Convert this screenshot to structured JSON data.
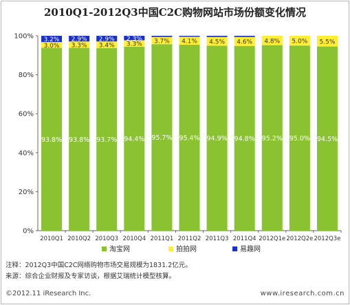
{
  "title": "2010Q1-2012Q3中国C2C购物网站市场份额变化情况",
  "notes": {
    "note": "注释：2012Q3中国C2C网络购物市场交易规模为1831.2亿元。",
    "source": "来源：综合企业财报及专家访谈，根据艾瑞统计模型核算。"
  },
  "footer": {
    "copyright": "©2012.11 iResearch Inc.",
    "website": "www.iresearch.com.cn"
  },
  "colors": {
    "taobao": "#8ac231",
    "paipai": "#ffee33",
    "yiqu": "#1a2ec8"
  },
  "chart_data": {
    "type": "bar",
    "stacked": true,
    "percent": true,
    "categories": [
      "2010Q1",
      "2010Q2",
      "2010Q3",
      "2010Q4",
      "2011Q1",
      "2011Q2",
      "2011Q3",
      "2011Q4",
      "2012Q1e",
      "2012Q2e",
      "2012Q3e"
    ],
    "series": [
      {
        "name": "淘宝网",
        "values": [
          93.8,
          93.8,
          93.7,
          94.4,
          95.7,
          95.4,
          94.9,
          94.8,
          95.2,
          95.0,
          94.5
        ],
        "labels": [
          "93.8%",
          "93.8%",
          "93.7%",
          "94.4%",
          "95.7%",
          "95.4%",
          "94.9%",
          "94.8%",
          "95.2%",
          "95.0%",
          "94.5%"
        ]
      },
      {
        "name": "拍拍网",
        "values": [
          3.0,
          3.3,
          3.4,
          3.3,
          3.7,
          4.1,
          4.5,
          4.6,
          4.8,
          5.0,
          5.5
        ],
        "labels": [
          "3.0%",
          "3.3%",
          "3.4%",
          "3.3%",
          "3.7%",
          "4.1%",
          "4.5%",
          "4.6%",
          "4.8%",
          "5.0%",
          "5.5%"
        ]
      },
      {
        "name": "易趣网",
        "values": [
          3.2,
          2.9,
          2.9,
          2.3,
          0.6,
          0.5,
          0.6,
          0.6,
          0,
          0,
          0
        ],
        "labels": [
          "3.2%",
          "2.9%",
          "2.9%",
          "2.3%",
          "",
          "",
          "",
          "",
          "",
          "",
          ""
        ]
      }
    ],
    "yticks": [
      "0%",
      "20%",
      "40%",
      "60%",
      "80%",
      "100%"
    ],
    "ylim": [
      0,
      100
    ],
    "legend_position": "bottom",
    "grid": false
  }
}
